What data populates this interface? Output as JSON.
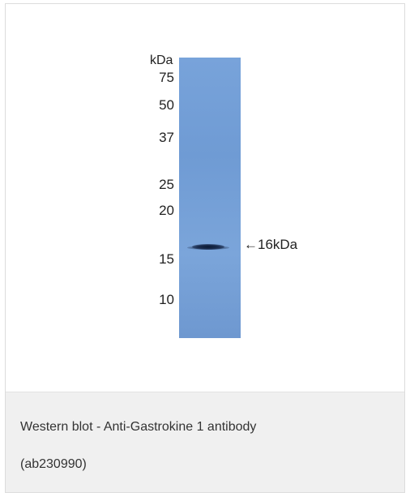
{
  "blot": {
    "unit_label": "kDa",
    "markers": [
      "75",
      "50",
      "37",
      "25",
      "20",
      "15",
      "10"
    ],
    "band_label": "←16kDa",
    "membrane_color": "#76a1d8"
  },
  "caption": {
    "line1": "Western blot - Anti-Gastrokine 1 antibody",
    "line2": "(ab230990)"
  }
}
